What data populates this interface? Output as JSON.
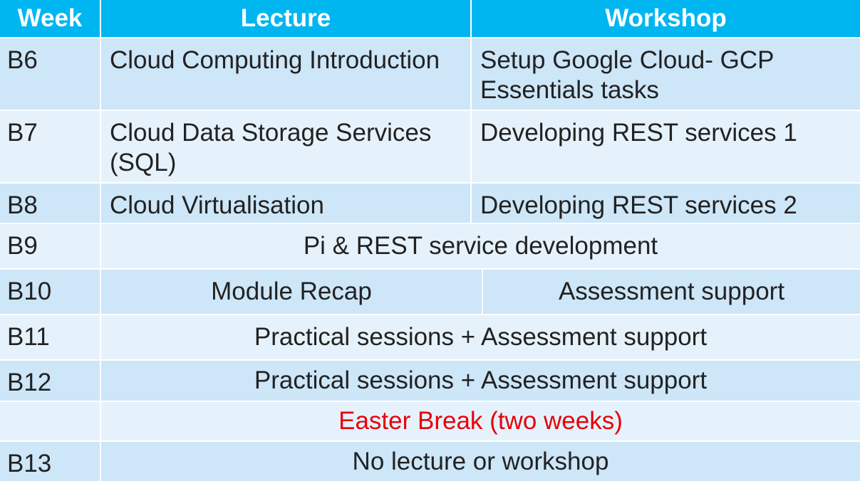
{
  "header": {
    "week": "Week",
    "lecture": "Lecture",
    "workshop": "Workshop"
  },
  "rows": [
    {
      "week": "B6",
      "lecture": "Cloud Computing Introduction",
      "workshop_line1": "Setup Google Cloud- GCP",
      "workshop_line2": "Essentials tasks"
    },
    {
      "week": "B7",
      "lecture_line1": "Cloud Data Storage Services",
      "lecture_line2": "(SQL)",
      "workshop": "Developing REST services 1"
    },
    {
      "week": "B8",
      "lecture": "Cloud Virtualisation",
      "workshop": "Developing REST services 2"
    },
    {
      "week": "B9",
      "combined": "Pi & REST service development"
    },
    {
      "week": "B10",
      "lecture": "Module Recap",
      "workshop": "Assessment support"
    },
    {
      "week": "B11",
      "combined": "Practical sessions + Assessment support"
    },
    {
      "week": "B12",
      "combined": "Practical sessions + Assessment support"
    },
    {
      "week": "",
      "combined": "Easter Break (two weeks)"
    },
    {
      "week": "B13",
      "combined": "No lecture or workshop"
    }
  ],
  "colors": {
    "header_bg": "#00b6f0",
    "row_dark": "#cde6f8",
    "row_light": "#e6f2fb",
    "easter_text": "#e8000b"
  }
}
